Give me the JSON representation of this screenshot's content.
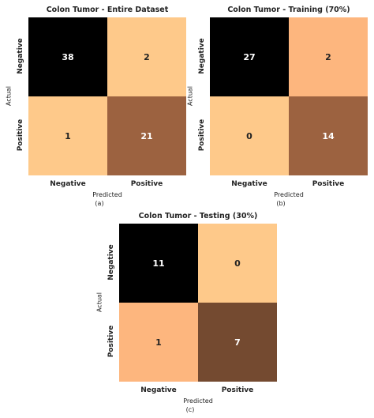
{
  "chart_data": [
    {
      "type": "heatmap",
      "title": "Colon Tumor - Entire Dataset",
      "xlabel": "Predicted",
      "ylabel": "Actual",
      "x_categories": [
        "Negative",
        "Positive"
      ],
      "y_categories": [
        "Negative",
        "Positive"
      ],
      "values": [
        [
          38,
          2
        ],
        [
          1,
          21
        ]
      ],
      "colors": [
        [
          "#000000",
          "#fec98a"
        ],
        [
          "#fec98a",
          "#9c6240"
        ]
      ],
      "text_colors": [
        [
          "#ffffff",
          "#222222"
        ],
        [
          "#222222",
          "#ffffff"
        ]
      ],
      "caption": "(a)"
    },
    {
      "type": "heatmap",
      "title": "Colon Tumor - Training (70%)",
      "xlabel": "Predicted",
      "ylabel": "Actual",
      "x_categories": [
        "Negative",
        "Positive"
      ],
      "y_categories": [
        "Negative",
        "Positive"
      ],
      "values": [
        [
          27,
          2
        ],
        [
          0,
          14
        ]
      ],
      "colors": [
        [
          "#000000",
          "#fdb67e"
        ],
        [
          "#fec98a",
          "#9c6240"
        ]
      ],
      "text_colors": [
        [
          "#ffffff",
          "#222222"
        ],
        [
          "#222222",
          "#ffffff"
        ]
      ],
      "caption": "(b)"
    },
    {
      "type": "heatmap",
      "title": "Colon Tumor - Testing (30%)",
      "xlabel": "Predicted",
      "ylabel": "Actual",
      "x_categories": [
        "Negative",
        "Positive"
      ],
      "y_categories": [
        "Negative",
        "Positive"
      ],
      "values": [
        [
          11,
          0
        ],
        [
          1,
          7
        ]
      ],
      "colors": [
        [
          "#000000",
          "#fec98a"
        ],
        [
          "#fdb67e",
          "#744a30"
        ]
      ],
      "text_colors": [
        [
          "#ffffff",
          "#222222"
        ],
        [
          "#222222",
          "#ffffff"
        ]
      ],
      "caption": "(c)"
    }
  ]
}
